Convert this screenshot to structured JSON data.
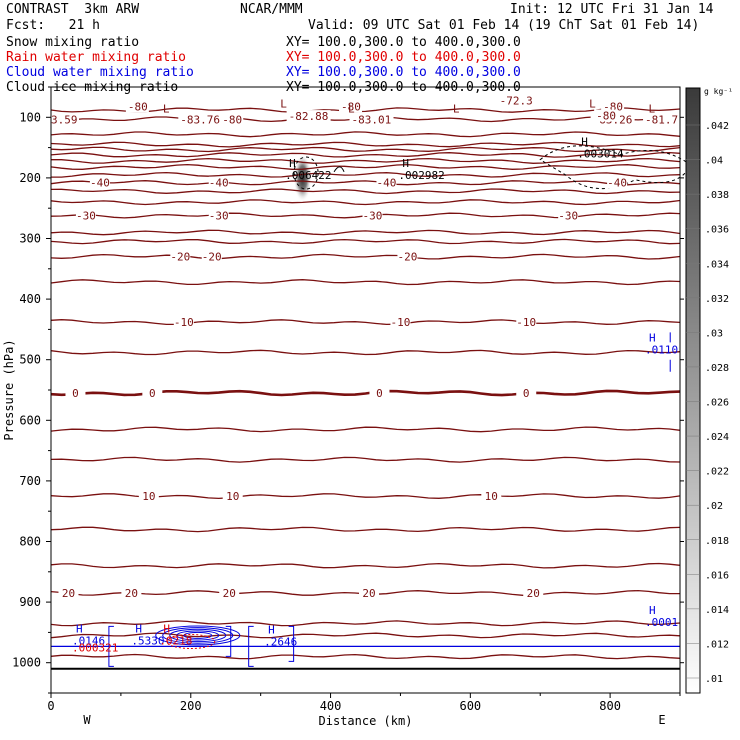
{
  "header": {
    "model": "CONTRAST  3km ARW",
    "org": "NCAR/MMM",
    "init": "Init: 12 UTC Fri 31 Jan 14",
    "fcst": "Fcst:   21 h",
    "valid": "Valid: 09 UTC Sat 01 Feb 14 (19 ChT Sat 01 Feb 14)",
    "fields": [
      {
        "name": "Snow mixing ratio",
        "xy": "XY= 100.0,300.0 to 400.0,300.0",
        "color": "#000000"
      },
      {
        "name": "Rain water mixing ratio",
        "xy": "XY= 100.0,300.0 to 400.0,300.0",
        "color": "#e00000"
      },
      {
        "name": "Cloud water mixing ratio",
        "xy": "XY= 100.0,300.0 to 400.0,300.0",
        "color": "#0000e0"
      },
      {
        "name": "Cloud ice mixing ratio",
        "xy": "XY= 100.0,300.0 to 400.0,300.0",
        "color": "#000000"
      }
    ]
  },
  "colors": {
    "isotherm": "#7a1010",
    "cloud_water": "#0000e0",
    "rain": "#e00000",
    "black": "#000000"
  },
  "chart_data": {
    "type": "contour",
    "xlabel": "Distance (km)",
    "ylabel": "Pressure (hPa)",
    "xlim": [
      0,
      900
    ],
    "ylim": [
      1050,
      50
    ],
    "x_ticks": [
      0,
      200,
      400,
      600,
      800
    ],
    "y_ticks": [
      100,
      200,
      300,
      400,
      500,
      600,
      700,
      800,
      900,
      1000
    ],
    "x_end_labels": {
      "left": "W",
      "right": "E"
    },
    "colorbar": {
      "unit": "g kg⁻¹",
      "ticks": [
        ".042",
        ".04",
        ".038",
        ".036",
        ".034",
        ".032",
        ".03",
        ".028",
        ".026",
        ".024",
        ".022",
        ".02",
        ".018",
        ".016",
        ".014",
        ".012",
        ".01"
      ]
    },
    "isotherms": [
      {
        "p": 88
      },
      {
        "p": 103
      },
      {
        "p": 128
      },
      {
        "p": 145
      },
      {
        "p": 153
      },
      {
        "p": 162
      },
      {
        "p": 172
      },
      {
        "p": 182
      },
      {
        "p": 195
      },
      {
        "p": 208,
        "label": "-40",
        "labels_x": [
          70,
          240,
          480,
          810
        ]
      },
      {
        "p": 222
      },
      {
        "p": 240
      },
      {
        "p": 262,
        "label": "-30",
        "labels_x": [
          50,
          240,
          460,
          740
        ]
      },
      {
        "p": 290
      },
      {
        "p": 305
      },
      {
        "p": 330,
        "label": "-20",
        "labels_x": [
          185,
          230,
          510
        ]
      },
      {
        "p": 372
      },
      {
        "p": 438,
        "label": "-10",
        "labels_x": [
          190,
          500,
          680
        ]
      },
      {
        "p": 488
      },
      {
        "p": 555,
        "label": "0",
        "labels_x": [
          35,
          145,
          470,
          680
        ],
        "bold": true
      },
      {
        "p": 615
      },
      {
        "p": 665
      },
      {
        "p": 725,
        "label": "10",
        "labels_x": [
          140,
          260,
          630
        ]
      },
      {
        "p": 780
      },
      {
        "p": 840
      },
      {
        "p": 885,
        "label": "20",
        "labels_x": [
          25,
          115,
          255,
          455,
          690
        ]
      },
      {
        "p": 935
      },
      {
        "p": 955
      },
      {
        "p": 990
      }
    ],
    "top_labels": [
      {
        "x": 110,
        "p": 82,
        "text": "-80"
      },
      {
        "x": 415,
        "p": 82,
        "text": "-80"
      },
      {
        "x": 790,
        "p": 82,
        "text": "-80"
      },
      {
        "x": 642,
        "p": 72,
        "text": "-72.3"
      },
      {
        "x": 0,
        "p": 104,
        "text": "3.59"
      },
      {
        "x": 185,
        "p": 104,
        "text": "-83.76"
      },
      {
        "x": 245,
        "p": 104,
        "text": "-80"
      },
      {
        "x": 340,
        "p": 98,
        "text": "-82.88"
      },
      {
        "x": 430,
        "p": 104,
        "text": "-83.01"
      },
      {
        "x": 775,
        "p": 104,
        "text": "-83.26"
      },
      {
        "x": 850,
        "p": 104,
        "text": "-81.7"
      },
      {
        "x": 780,
        "p": 97,
        "text": "-80"
      }
    ],
    "lows": [
      {
        "x": 160,
        "p": 92
      },
      {
        "x": 328,
        "p": 84
      },
      {
        "x": 425,
        "p": 92
      },
      {
        "x": 575,
        "p": 92
      },
      {
        "x": 770,
        "p": 84
      },
      {
        "x": 855,
        "p": 92
      }
    ],
    "extrema": [
      {
        "x": 335,
        "p": 195,
        "h": "H",
        "value": ".006422",
        "color": "#000000"
      },
      {
        "x": 497,
        "p": 195,
        "h": "H",
        "value": ".002982",
        "color": "#000000"
      },
      {
        "x": 753,
        "p": 160,
        "h": "H",
        "value": ".003014",
        "color": "#000000"
      },
      {
        "x": 850,
        "p": 483,
        "h": "H",
        "value": ".0110",
        "color": "#0000e0"
      },
      {
        "x": 850,
        "p": 933,
        "h": "H",
        "value": ".0001",
        "color": "#0000e0"
      },
      {
        "x": 30,
        "p": 963,
        "h": "H",
        "value": ".0146",
        "color": "#0000e0"
      },
      {
        "x": 30,
        "p": 975,
        "h": "",
        "value": ".000321",
        "color": "#e00000"
      },
      {
        "x": 115,
        "p": 963,
        "h": "H",
        "value": ".5330",
        "color": "#0000e0"
      },
      {
        "x": 155,
        "p": 963,
        "h": "H",
        "value": ".0218",
        "color": "#e00000"
      },
      {
        "x": 305,
        "p": 965,
        "h": "H",
        "value": ".2646",
        "color": "#0000e0"
      }
    ],
    "shading": {
      "x": 360,
      "p": 200,
      "max": 0.042
    },
    "cloud_water_line_p": 973
  }
}
